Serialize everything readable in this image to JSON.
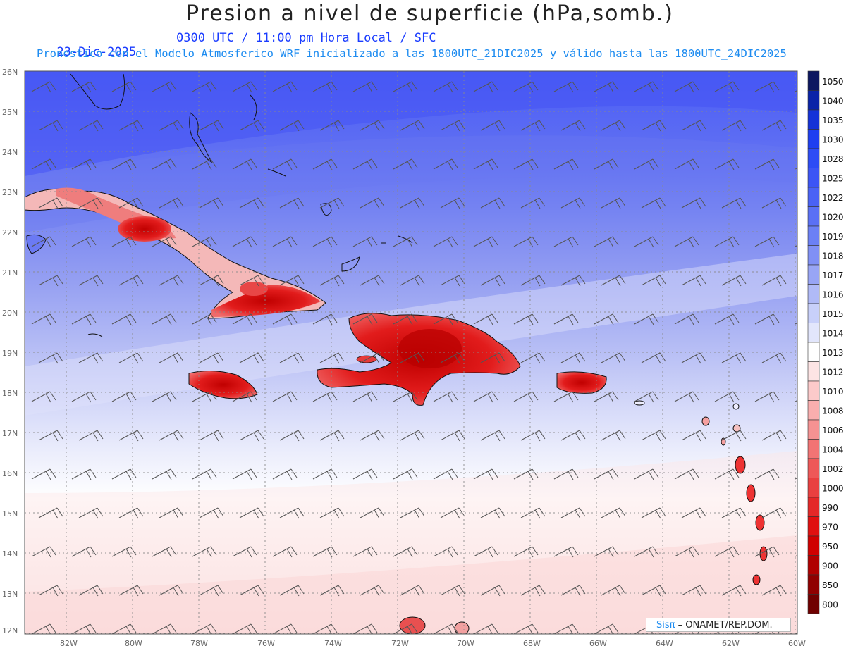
{
  "title": "Presion a nivel de superficie (hPa,somb.)",
  "date": "23-Dic-2025",
  "time_info": "0300 UTC / 11:00 pm Hora Local / SFC",
  "forecast_info": "Pronostico con el Modelo Atmosferico WRF inicializado a las 1800UTC_21DIC2025 y válido hasta las  1800UTC_24DIC2025",
  "credit": {
    "logo": "Sisπ",
    "text": " – ONAMET/REP.DOM."
  },
  "latitude_labels": [
    "26N",
    "25N",
    "24N",
    "23N",
    "22N",
    "21N",
    "20N",
    "19N",
    "18N",
    "17N",
    "16N",
    "15N",
    "14N",
    "13N",
    "12N"
  ],
  "longitude_labels": [
    "82W",
    "80W",
    "78W",
    "76W",
    "74W",
    "72W",
    "70W",
    "68W",
    "66W",
    "64W",
    "62W",
    "60W"
  ],
  "colorbar": {
    "labels": [
      "1050",
      "1040",
      "1035",
      "1030",
      "1028",
      "1025",
      "1022",
      "1020",
      "1019",
      "1018",
      "1017",
      "1016",
      "1015",
      "1014",
      "1013",
      "1012",
      "1010",
      "1008",
      "1006",
      "1004",
      "1002",
      "1000",
      "990",
      "970",
      "950",
      "900",
      "850",
      "800"
    ],
    "colors": [
      "#0d1760",
      "#0a23a8",
      "#1432d8",
      "#1e3ff0",
      "#2d4cf5",
      "#3c55f5",
      "#4a62f5",
      "#5a70f5",
      "#6b80f5",
      "#8090f5",
      "#98a5f5",
      "#b0baf7",
      "#c8d0fa",
      "#e2e6fc",
      "#ffffff",
      "#fde4e4",
      "#fccaca",
      "#f9aeae",
      "#f59292",
      "#f27474",
      "#ee5858",
      "#e94040",
      "#e42828",
      "#e01010",
      "#d00000",
      "#b00000",
      "#900000",
      "#700000"
    ]
  },
  "highlight_colors": {
    "land_high_red": "#e01818",
    "ocean_blue": "#4e5ff2",
    "ocean_mid": "#c4cbf8"
  }
}
